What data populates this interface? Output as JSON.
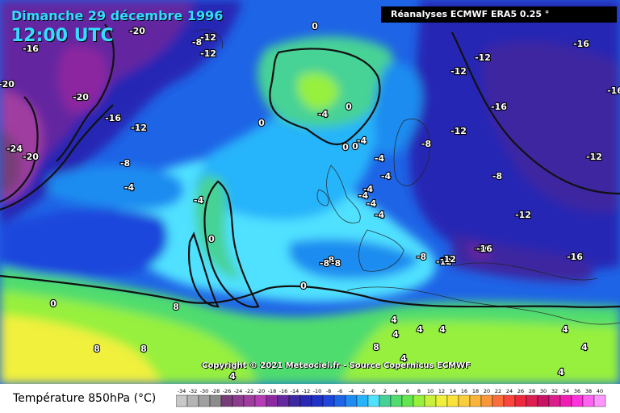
{
  "title": {
    "date": "Dimanche 29 décembre 1996",
    "time": "12:00 UTC"
  },
  "source": "Réanalyses ECMWF ERA5 0.25 °",
  "copyright": "Copyright © 2021 Meteociel.fr - Source Copernicus ECMWF",
  "legend": {
    "title": "Température 850hPa (°C)",
    "ticks": [
      "-34",
      "-32",
      "-30",
      "-28",
      "-26",
      "-24",
      "-22",
      "-20",
      "-18",
      "-16",
      "-14",
      "-12",
      "-10",
      "-8",
      "-6",
      "-4",
      "-2",
      "0",
      "2",
      "4",
      "6",
      "8",
      "10",
      "12",
      "14",
      "16",
      "18",
      "20",
      "22",
      "24",
      "26",
      "28",
      "30",
      "32",
      "34",
      "36",
      "38",
      "40"
    ],
    "colors": [
      "#c8c8c8",
      "#b4b4b4",
      "#a0a0a0",
      "#8c8c8c",
      "#783c78",
      "#8c3c8c",
      "#a03ca0",
      "#b43cb4",
      "#8c28a0",
      "#6428a0",
      "#3c28a0",
      "#2828b4",
      "#1e32c8",
      "#1e46dc",
      "#1e64e6",
      "#1e8cf0",
      "#28b4fa",
      "#50e1ff",
      "#46d296",
      "#50dc6e",
      "#64e650",
      "#96f03c",
      "#c8f03c",
      "#f0f03c",
      "#fae13c",
      "#facd3c",
      "#fab43c",
      "#fa963c",
      "#fa6e3c",
      "#fa463c",
      "#f0283c",
      "#dc1e50",
      "#c81464",
      "#dc1e8c",
      "#f01eb4",
      "#ff32dc",
      "#ff64f0",
      "#ff96ff"
    ]
  },
  "isotherm_labels": [
    {
      "t": "-20"
    },
    {
      "t": "-16"
    },
    {
      "t": "-20"
    },
    {
      "t": "-20"
    },
    {
      "t": "-24"
    },
    {
      "t": "-20"
    },
    {
      "t": "-16"
    },
    {
      "t": "-12"
    },
    {
      "t": "-8"
    },
    {
      "t": "-4"
    },
    {
      "t": "-4"
    },
    {
      "t": "0"
    },
    {
      "t": "0"
    },
    {
      "t": "-8"
    },
    {
      "t": "-12"
    },
    {
      "t": "-12"
    },
    {
      "t": "-12"
    },
    {
      "t": "-16"
    },
    {
      "t": "-16"
    },
    {
      "t": "-12"
    },
    {
      "t": "-8"
    },
    {
      "t": "-8"
    },
    {
      "t": "-12"
    },
    {
      "t": "-12"
    },
    {
      "t": "-16"
    },
    {
      "t": "-16"
    },
    {
      "t": "-8"
    },
    {
      "t": "-12"
    },
    {
      "t": "-4"
    },
    {
      "t": "-4"
    },
    {
      "t": "0"
    },
    {
      "t": "-4"
    },
    {
      "t": "0"
    },
    {
      "t": "-4"
    },
    {
      "t": "-4"
    },
    {
      "t": "-4"
    },
    {
      "t": "-4"
    },
    {
      "t": "-4"
    },
    {
      "t": "-8"
    },
    {
      "t": "-8"
    },
    {
      "t": "0"
    },
    {
      "t": "0"
    },
    {
      "t": "4"
    },
    {
      "t": "8"
    },
    {
      "t": "8"
    },
    {
      "t": "8"
    },
    {
      "t": "4"
    },
    {
      "t": "4"
    },
    {
      "t": "4"
    },
    {
      "t": "8"
    },
    {
      "t": "4"
    },
    {
      "t": "4"
    },
    {
      "t": "4"
    },
    {
      "t": "4"
    },
    {
      "t": "-12"
    },
    {
      "t": "-16"
    },
    {
      "t": "4"
    },
    {
      "t": "0"
    },
    {
      "t": "-8"
    },
    {
      "t": "-12"
    },
    {
      "t": "-16"
    },
    {
      "t": "0"
    }
  ]
}
